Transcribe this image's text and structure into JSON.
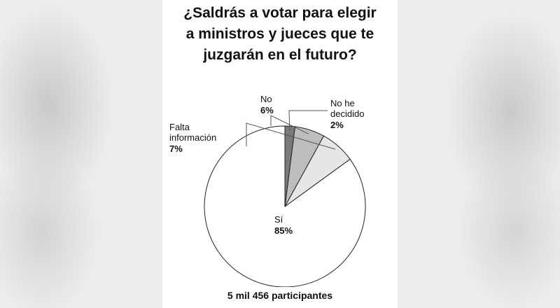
{
  "chart_data": {
    "type": "pie",
    "title": "¿Saldrás a votar para elegir\na ministros y jueces que te\njuzgarán en el futuro?",
    "footer": "5 mil 456 participantes",
    "slices": [
      {
        "name": "Sí",
        "label_lines": [
          "Sí"
        ],
        "value": 85,
        "value_label": "85%",
        "color": "#ffffff"
      },
      {
        "name": "Falta información",
        "label_lines": [
          "Falta",
          "información"
        ],
        "value": 7,
        "value_label": "7%",
        "color": "#e6e6e6"
      },
      {
        "name": "No",
        "label_lines": [
          "No"
        ],
        "value": 6,
        "value_label": "6%",
        "color": "#bdbdbd"
      },
      {
        "name": "No he decidido",
        "label_lines": [
          "No he",
          "decidido"
        ],
        "value": 2,
        "value_label": "2%",
        "color": "#7a7a7a"
      }
    ],
    "start_angle_deg": 0,
    "direction": "counterclockwise",
    "stroke_color": "#222222"
  }
}
